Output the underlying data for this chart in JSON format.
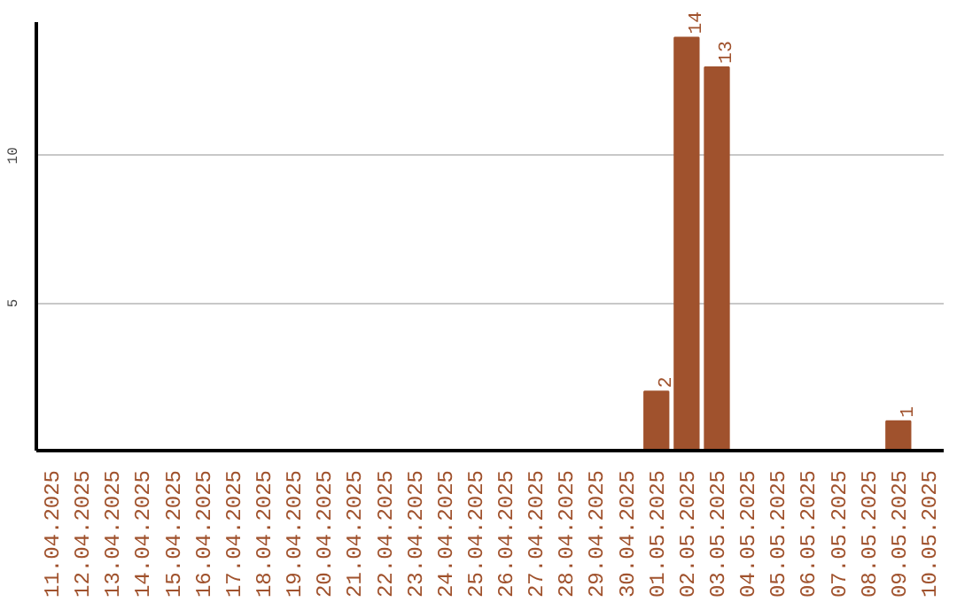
{
  "chart_data": {
    "type": "bar",
    "categories": [
      "11.04.2025",
      "12.04.2025",
      "13.04.2025",
      "14.04.2025",
      "15.04.2025",
      "16.04.2025",
      "17.04.2025",
      "18.04.2025",
      "19.04.2025",
      "20.04.2025",
      "21.04.2025",
      "22.04.2025",
      "23.04.2025",
      "24.04.2025",
      "25.04.2025",
      "26.04.2025",
      "27.04.2025",
      "28.04.2025",
      "29.04.2025",
      "30.04.2025",
      "01.05.2025",
      "02.05.2025",
      "03.05.2025",
      "04.05.2025",
      "05.05.2025",
      "06.05.2025",
      "07.05.2025",
      "08.05.2025",
      "09.05.2025",
      "10.05.2025"
    ],
    "values": [
      0,
      0,
      0,
      0,
      0,
      0,
      0,
      0,
      0,
      0,
      0,
      0,
      0,
      0,
      0,
      0,
      0,
      0,
      0,
      0,
      2,
      14,
      13,
      0,
      0,
      0,
      0,
      0,
      1,
      0
    ],
    "value_labels": [
      null,
      null,
      null,
      null,
      null,
      null,
      null,
      null,
      null,
      null,
      null,
      null,
      null,
      null,
      null,
      null,
      null,
      null,
      null,
      null,
      "2",
      "14",
      "13",
      null,
      null,
      null,
      null,
      null,
      "1",
      null
    ],
    "color": "#a0522d",
    "ylim": [
      0,
      14.5
    ],
    "yticks": [
      5,
      10
    ],
    "grid": "y"
  }
}
